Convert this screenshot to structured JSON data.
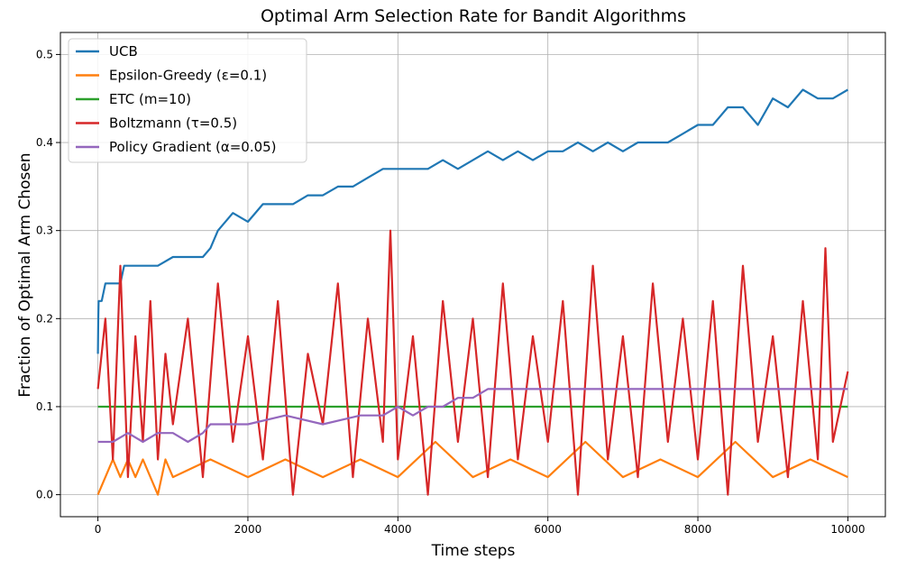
{
  "chart_data": {
    "type": "line",
    "title": "Optimal Arm Selection Rate for Bandit Algorithms",
    "xlabel": "Time steps",
    "ylabel": "Fraction of Optimal Arm Chosen",
    "xlim": [
      -500,
      10500
    ],
    "ylim": [
      -0.025,
      0.525
    ],
    "xticks": [
      0,
      2000,
      4000,
      6000,
      8000,
      10000
    ],
    "xtick_labels": [
      "0",
      "2000",
      "4000",
      "6000",
      "8000",
      "10000"
    ],
    "yticks": [
      0.0,
      0.1,
      0.2,
      0.3,
      0.4,
      0.5
    ],
    "ytick_labels": [
      "0.0",
      "0.1",
      "0.2",
      "0.3",
      "0.4",
      "0.5"
    ],
    "grid": true,
    "legend_position": "top-left",
    "series": [
      {
        "name": "UCB",
        "color": "#1f77b4",
        "x": [
          0,
          5,
          10,
          50,
          100,
          200,
          300,
          350,
          800,
          1000,
          1100,
          1200,
          1300,
          1400,
          1500,
          1600,
          1700,
          1800,
          2000,
          2200,
          2400,
          2600,
          2800,
          3000,
          3200,
          3400,
          3600,
          3800,
          4000,
          4200,
          4400,
          4600,
          4800,
          5000,
          5200,
          5400,
          5600,
          5800,
          6000,
          6200,
          6400,
          6600,
          6800,
          7000,
          7200,
          7400,
          7600,
          7800,
          8000,
          8200,
          8400,
          8600,
          8800,
          9000,
          9200,
          9400,
          9600,
          9800,
          10000
        ],
        "y": [
          0.16,
          0.2,
          0.22,
          0.22,
          0.24,
          0.24,
          0.24,
          0.26,
          0.26,
          0.27,
          0.27,
          0.27,
          0.27,
          0.27,
          0.28,
          0.3,
          0.31,
          0.32,
          0.31,
          0.33,
          0.33,
          0.33,
          0.34,
          0.34,
          0.35,
          0.35,
          0.36,
          0.37,
          0.37,
          0.37,
          0.37,
          0.38,
          0.37,
          0.38,
          0.39,
          0.38,
          0.39,
          0.38,
          0.39,
          0.39,
          0.4,
          0.39,
          0.4,
          0.39,
          0.4,
          0.4,
          0.4,
          0.41,
          0.42,
          0.42,
          0.44,
          0.44,
          0.42,
          0.45,
          0.44,
          0.46,
          0.45,
          0.45,
          0.46
        ]
      },
      {
        "name": "Epsilon-Greedy (ε=0.1)",
        "color": "#ff7f0e",
        "x": [
          0,
          100,
          200,
          300,
          400,
          500,
          600,
          700,
          800,
          900,
          1000,
          1500,
          2000,
          2500,
          3000,
          3500,
          4000,
          4500,
          5000,
          5500,
          6000,
          6500,
          7000,
          7500,
          8000,
          8500,
          9000,
          9500,
          10000
        ],
        "y": [
          0.0,
          0.02,
          0.04,
          0.02,
          0.04,
          0.02,
          0.04,
          0.02,
          0.0,
          0.04,
          0.02,
          0.04,
          0.02,
          0.04,
          0.02,
          0.04,
          0.02,
          0.06,
          0.02,
          0.04,
          0.02,
          0.06,
          0.02,
          0.04,
          0.02,
          0.06,
          0.02,
          0.04,
          0.02
        ]
      },
      {
        "name": "ETC (m=10)",
        "color": "#2ca02c",
        "x": [
          0,
          10000
        ],
        "y": [
          0.1,
          0.1
        ]
      },
      {
        "name": "Boltzmann (τ=0.5)",
        "color": "#d62728",
        "x": [
          0,
          100,
          200,
          300,
          400,
          500,
          600,
          700,
          800,
          900,
          1000,
          1200,
          1400,
          1600,
          1800,
          2000,
          2200,
          2400,
          2600,
          2800,
          3000,
          3200,
          3400,
          3600,
          3800,
          3900,
          4000,
          4200,
          4400,
          4600,
          4800,
          5000,
          5200,
          5400,
          5600,
          5800,
          6000,
          6200,
          6400,
          6600,
          6800,
          7000,
          7200,
          7400,
          7600,
          7800,
          8000,
          8200,
          8400,
          8600,
          8800,
          9000,
          9200,
          9400,
          9600,
          9700,
          9800,
          10000
        ],
        "y": [
          0.12,
          0.2,
          0.04,
          0.26,
          0.02,
          0.18,
          0.06,
          0.22,
          0.04,
          0.16,
          0.08,
          0.2,
          0.02,
          0.24,
          0.06,
          0.18,
          0.04,
          0.22,
          0.0,
          0.16,
          0.08,
          0.24,
          0.02,
          0.2,
          0.06,
          0.3,
          0.04,
          0.18,
          0.0,
          0.22,
          0.06,
          0.2,
          0.02,
          0.24,
          0.04,
          0.18,
          0.06,
          0.22,
          0.0,
          0.26,
          0.04,
          0.18,
          0.02,
          0.24,
          0.06,
          0.2,
          0.04,
          0.22,
          0.0,
          0.26,
          0.06,
          0.18,
          0.02,
          0.22,
          0.04,
          0.28,
          0.06,
          0.14
        ]
      },
      {
        "name": "Policy Gradient (α=0.05)",
        "color": "#9467bd",
        "x": [
          0,
          200,
          400,
          600,
          800,
          1000,
          1200,
          1400,
          1500,
          2000,
          2500,
          3000,
          3500,
          3800,
          4000,
          4200,
          4400,
          4600,
          4800,
          5000,
          5200,
          6000,
          6500,
          7000,
          7500,
          8000,
          8500,
          9000,
          9500,
          10000
        ],
        "y": [
          0.06,
          0.06,
          0.07,
          0.06,
          0.07,
          0.07,
          0.06,
          0.07,
          0.08,
          0.08,
          0.09,
          0.08,
          0.09,
          0.09,
          0.1,
          0.09,
          0.1,
          0.1,
          0.11,
          0.11,
          0.12,
          0.12,
          0.12,
          0.12,
          0.12,
          0.12,
          0.12,
          0.12,
          0.12,
          0.12
        ]
      }
    ]
  }
}
